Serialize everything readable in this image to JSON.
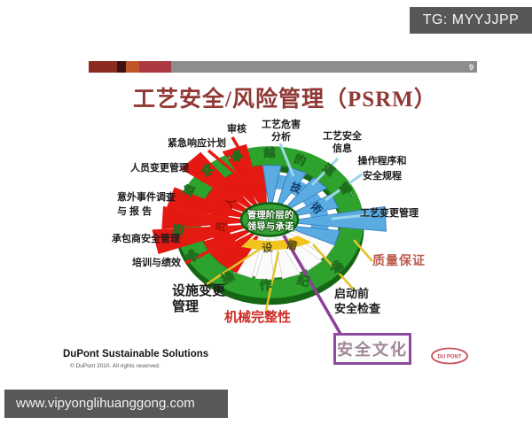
{
  "overlay": {
    "tg_label": "TG: MYYJJPP",
    "url": "www.vipyonglihuanggong.com"
  },
  "slide": {
    "page_number": "9",
    "title": "工艺安全/风险管理（PSRM）"
  },
  "labels": {
    "audit": "审核",
    "emergency_response": "紧急响应计划",
    "personnel_change": "人员变更管理",
    "incident_investigation": "意外事件调查\n与  报  告",
    "contractor_safety": "承包商安全管理",
    "training_performance": "培训与绩效",
    "facility_change": "设施变更\n管理",
    "process_hazard_analysis": "工艺危害\n分析",
    "process_safety_info": "工艺安全\n信息",
    "operating_procedures": "操作程序和\n安全规程",
    "process_change": "工艺变更管理",
    "quality_assurance": "质量保证",
    "pre_startup_review": "启动前\n安全检查",
    "mechanical_integrity": "机械完整性",
    "safety_culture": "安全文化"
  },
  "wheel": {
    "center_line1": "管理阶层的",
    "center_line2": "领导与承诺",
    "ring": [
      "求",
      "追",
      "经",
      "营",
      "“卓",
      "越",
      "的",
      "運",
      "營”",
      "操",
      "作",
      "纪",
      "律"
    ],
    "sectors": {
      "technology": [
        "技",
        "術"
      ],
      "equipment": [
        "设",
        "備"
      ],
      "personnel": [
        "人",
        "员"
      ]
    }
  },
  "footer": {
    "brand": "DuPont Sustainable Solutions",
    "copyright": "© DuPont 2010. All rights reserved.",
    "logo_text": "DU PONT"
  },
  "colors": {
    "accent_red": "#e41911",
    "accent_blue": "#5aabe2",
    "accent_yellow": "#f2c41d",
    "accent_green": "#2da22d",
    "accent_purple": "#8e4099"
  }
}
